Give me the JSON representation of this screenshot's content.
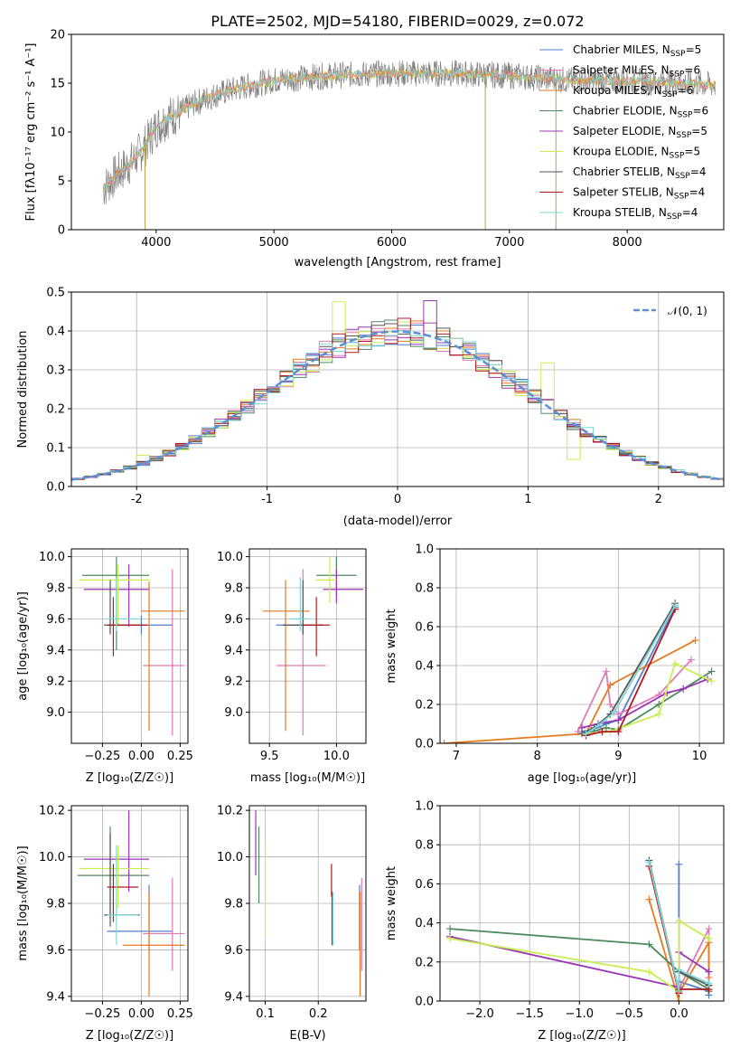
{
  "figure": {
    "title": "PLATE=2502, MJD=54180, FIBERID=0029, z=0.072"
  },
  "colors": {
    "data_grey": "#808080",
    "grid": "#b0b0b0",
    "models": [
      "#4f7fd0",
      "#e07ab8",
      "#e67a1c",
      "#4d8a5e",
      "#9b35b5",
      "#c8ef4e",
      "#555555",
      "#b3191c",
      "#7fd6d6"
    ],
    "normal": "#5b8fd6"
  },
  "models": [
    {
      "label": "Chabrier MILES, N",
      "nssp": "5"
    },
    {
      "label": "Salpeter MILES, N",
      "nssp": "6"
    },
    {
      "label": "Kroupa MILES, N",
      "nssp": "6"
    },
    {
      "label": "Chabrier ELODIE, N",
      "nssp": "6"
    },
    {
      "label": "Salpeter ELODIE, N",
      "nssp": "5"
    },
    {
      "label": "Kroupa ELODIE, N",
      "nssp": "5"
    },
    {
      "label": "Chabrier STELIB, N",
      "nssp": "4"
    },
    {
      "label": "Salpeter STELIB, N",
      "nssp": "4"
    },
    {
      "label": "Kroupa STELIB, N",
      "nssp": "4"
    }
  ],
  "chart_data": [
    {
      "id": "spectrum",
      "type": "line",
      "xlabel": "wavelength [Angstrom, rest frame]",
      "ylabel": "Flux [fλ10⁻¹⁷ erg cm⁻² s⁻¹ A⁻¹]",
      "xlim": [
        3280,
        8820
      ],
      "ylim": [
        0,
        20
      ],
      "xticks": [
        4000,
        5000,
        6000,
        7000,
        8000
      ],
      "yticks": [
        0,
        5,
        10,
        15,
        20
      ],
      "grid": false,
      "legend": "top-right",
      "continuum": {
        "x": [
          3550,
          3650,
          3800,
          3900,
          4000,
          4100,
          4200,
          4300,
          4500,
          4700,
          5000,
          5500,
          6000,
          6500,
          7000,
          7500,
          8000,
          8500,
          8750
        ],
        "y": [
          4.2,
          5.5,
          7.0,
          8.5,
          10.5,
          11.5,
          12.0,
          12.8,
          13.8,
          14.5,
          15.3,
          15.8,
          16.0,
          16.0,
          15.8,
          15.3,
          15.2,
          15.0,
          14.8
        ]
      },
      "noise": 1.4,
      "drops": [
        {
          "x": 3905,
          "y": 0
        },
        {
          "x": 6795,
          "y": 0
        },
        {
          "x": 7395,
          "y": 0
        }
      ]
    },
    {
      "id": "residuals",
      "type": "bar",
      "xlabel": "(data-model)/error",
      "ylabel": "Normed distribution",
      "xlim": [
        -2.5,
        2.5
      ],
      "ylim": [
        0,
        0.5
      ],
      "xticks": [
        -2,
        -1,
        0,
        1,
        2
      ],
      "yticks": [
        0.0,
        0.1,
        0.2,
        0.3,
        0.4,
        0.5
      ],
      "grid": true,
      "legend": "top-right",
      "legend_label": "𝒩(0, 1)",
      "bin_width": 0.1,
      "highlights": [
        {
          "x": -0.45,
          "value": 0.475,
          "series": 5
        },
        {
          "x": 0.25,
          "value": 0.478,
          "series": 4
        },
        {
          "x": 1.15,
          "value": 0.318,
          "series": 5
        },
        {
          "x": -1.95,
          "value": 0.08,
          "series": 5
        },
        {
          "x": 1.35,
          "value": 0.07,
          "series": 5
        }
      ]
    },
    {
      "id": "age-vs-z",
      "type": "scatter",
      "xlabel": "Z [log₁₀(Z/Z☉)]",
      "ylabel": "age  [log₁₀(age/yr)]",
      "xlim": [
        -0.45,
        0.3
      ],
      "ylim": [
        8.8,
        10.05
      ],
      "xticks": [
        -0.25,
        0.0,
        0.25
      ],
      "xticklabels": [
        "−0.25",
        "0.00",
        "0.25"
      ],
      "yticks": [
        9.0,
        9.2,
        9.4,
        9.6,
        9.8,
        10.0
      ],
      "grid": true,
      "points": [
        {
          "x": 0.0,
          "xe": [
            -0.22,
            0.2
          ],
          "y": 9.56,
          "ye": [
            9.5,
            9.62
          ],
          "series": 0
        },
        {
          "x": 0.2,
          "xe": [
            0.01,
            0.28
          ],
          "y": 9.3,
          "ye": [
            8.85,
            9.92
          ],
          "series": 1
        },
        {
          "x": 0.05,
          "xe": [
            0.0,
            0.28
          ],
          "y": 9.65,
          "ye": [
            8.88,
            9.84
          ],
          "series": 2
        },
        {
          "x": -0.16,
          "xe": [
            -0.38,
            0.05
          ],
          "y": 9.88,
          "ye": [
            9.4,
            10.0
          ],
          "series": 3
        },
        {
          "x": -0.08,
          "xe": [
            -0.37,
            0.05
          ],
          "y": 9.79,
          "ye": [
            9.55,
            9.95
          ],
          "series": 4
        },
        {
          "x": -0.15,
          "xe": [
            -0.4,
            0.05
          ],
          "y": 9.85,
          "ye": [
            9.55,
            9.95
          ],
          "series": 5
        },
        {
          "x": -0.2,
          "xe": [
            -0.24,
            -0.01
          ],
          "y": 9.56,
          "ye": [
            9.5,
            9.85
          ],
          "series": 6
        },
        {
          "x": -0.18,
          "xe": [
            -0.22,
            0.04
          ],
          "y": 9.56,
          "ye": [
            9.36,
            9.74
          ],
          "series": 7
        },
        {
          "x": -0.16,
          "xe": [
            -0.22,
            -0.02
          ],
          "y": 9.6,
          "ye": [
            9.52,
            9.87
          ],
          "series": 8
        }
      ]
    },
    {
      "id": "age-vs-mass",
      "type": "scatter",
      "xlabel": "mass [log₁₀(M/M☉)]",
      "ylabel": "",
      "xlim": [
        9.35,
        10.22
      ],
      "ylim": [
        8.8,
        10.05
      ],
      "xticks": [
        9.5,
        10.0
      ],
      "xticklabels": [
        "9.5",
        "10.0"
      ],
      "yticks": [
        9.0,
        9.2,
        9.4,
        9.6,
        9.8,
        10.0
      ],
      "grid": true,
      "points": [
        {
          "x": 9.75,
          "xe": [
            9.55,
            9.9
          ],
          "y": 9.56,
          "ye": [
            9.5,
            9.62
          ],
          "series": 0
        },
        {
          "x": 9.75,
          "xe": [
            9.55,
            9.92
          ],
          "y": 9.3,
          "ye": [
            8.85,
            9.92
          ],
          "series": 1
        },
        {
          "x": 9.62,
          "xe": [
            9.45,
            9.8
          ],
          "y": 9.65,
          "ye": [
            8.88,
            9.85
          ],
          "series": 2
        },
        {
          "x": 10.0,
          "xe": [
            9.85,
            10.15
          ],
          "y": 9.88,
          "ye": [
            9.75,
            10.0
          ],
          "series": 3
        },
        {
          "x": 10.0,
          "xe": [
            9.9,
            10.2
          ],
          "y": 9.79,
          "ye": [
            9.7,
            9.92
          ],
          "series": 4
        },
        {
          "x": 9.95,
          "xe": [
            9.85,
            10.0
          ],
          "y": 9.85,
          "ye": [
            9.7,
            10.0
          ],
          "series": 5
        },
        {
          "x": 9.75,
          "xe": [
            9.6,
            9.9
          ],
          "y": 9.56,
          "ye": [
            9.5,
            9.85
          ],
          "series": 6
        },
        {
          "x": 9.85,
          "xe": [
            9.75,
            9.95
          ],
          "y": 9.56,
          "ye": [
            9.36,
            9.74
          ],
          "series": 7
        },
        {
          "x": 9.73,
          "xe": [
            9.65,
            9.8
          ],
          "y": 9.6,
          "ye": [
            9.52,
            9.87
          ],
          "series": 8
        }
      ]
    },
    {
      "id": "weight-vs-age",
      "type": "line",
      "xlabel": "age  [log₁₀(age/yr)]",
      "ylabel": "mass weight",
      "xlim": [
        6.8,
        10.3
      ],
      "ylim": [
        0,
        1.0
      ],
      "xticks": [
        7,
        8,
        9,
        10
      ],
      "xticklabels": [
        "7",
        "8",
        "9",
        "10"
      ],
      "yticks": [
        0.0,
        0.2,
        0.4,
        0.6,
        0.8,
        1.0
      ],
      "grid": true,
      "series": [
        {
          "name": "Chabrier MILES",
          "x": [
            8.55,
            8.75,
            8.85,
            9.0,
            9.7
          ],
          "y": [
            0.06,
            0.08,
            0.1,
            0.12,
            0.7
          ],
          "series": 0
        },
        {
          "name": "Salpeter MILES",
          "x": [
            8.5,
            8.85,
            8.9,
            9.0,
            9.5,
            9.9
          ],
          "y": [
            0.06,
            0.37,
            0.2,
            0.15,
            0.25,
            0.43
          ],
          "series": 1
        },
        {
          "name": "Kroupa MILES",
          "x": [
            6.85,
            8.6,
            8.9,
            9.95
          ],
          "y": [
            0.0,
            0.05,
            0.3,
            0.53
          ],
          "series": 2
        },
        {
          "name": "Chabrier ELODIE",
          "x": [
            8.6,
            8.85,
            9.0,
            9.5,
            10.15
          ],
          "y": [
            0.05,
            0.08,
            0.07,
            0.2,
            0.37
          ],
          "series": 3
        },
        {
          "name": "Salpeter ELODIE",
          "x": [
            8.55,
            8.75,
            9.0,
            9.6,
            9.8,
            10.1
          ],
          "y": [
            0.08,
            0.1,
            0.12,
            0.26,
            0.28,
            0.33
          ],
          "series": 4
        },
        {
          "name": "Kroupa ELODIE",
          "x": [
            8.6,
            8.9,
            9.5,
            9.7,
            10.15
          ],
          "y": [
            0.05,
            0.06,
            0.15,
            0.41,
            0.32
          ],
          "series": 5
        },
        {
          "name": "Chabrier STELIB",
          "x": [
            8.55,
            8.7,
            8.9,
            9.7
          ],
          "y": [
            0.05,
            0.08,
            0.15,
            0.72
          ],
          "series": 6
        },
        {
          "name": "Salpeter STELIB",
          "x": [
            8.6,
            8.8,
            9.0,
            9.7
          ],
          "y": [
            0.04,
            0.06,
            0.06,
            0.69
          ],
          "series": 7
        },
        {
          "name": "Kroupa STELIB",
          "x": [
            8.6,
            8.75,
            8.95,
            9.7
          ],
          "y": [
            0.05,
            0.09,
            0.16,
            0.71
          ],
          "series": 8
        }
      ]
    },
    {
      "id": "mass-vs-z",
      "type": "scatter",
      "xlabel": "Z [log₁₀(Z/Z☉)]",
      "ylabel": "mass [log₁₀(M/M☉)]",
      "xlim": [
        -0.45,
        0.3
      ],
      "ylim": [
        9.38,
        10.22
      ],
      "xticks": [
        -0.25,
        0.0,
        0.25
      ],
      "xticklabels": [
        "−0.25",
        "0.00",
        "0.25"
      ],
      "yticks": [
        9.4,
        9.6,
        9.8,
        10.0,
        10.2
      ],
      "grid": true,
      "points": [
        {
          "x": 0.05,
          "xe": [
            -0.22,
            0.2
          ],
          "y": 9.68,
          "ye": [
            9.6,
            9.88
          ],
          "series": 0
        },
        {
          "x": 0.2,
          "xe": [
            0.01,
            0.28
          ],
          "y": 9.67,
          "ye": [
            9.51,
            9.91
          ],
          "series": 1
        },
        {
          "x": 0.05,
          "xe": [
            -0.12,
            0.28
          ],
          "y": 9.62,
          "ye": [
            9.4,
            9.85
          ],
          "series": 2
        },
        {
          "x": -0.2,
          "xe": [
            -0.41,
            0.05
          ],
          "y": 9.92,
          "ye": [
            9.75,
            10.13
          ],
          "series": 3
        },
        {
          "x": -0.08,
          "xe": [
            -0.37,
            0.05
          ],
          "y": 9.99,
          "ye": [
            9.85,
            10.2
          ],
          "series": 4
        },
        {
          "x": -0.15,
          "xe": [
            -0.4,
            0.05
          ],
          "y": 9.95,
          "ye": [
            9.78,
            10.05
          ],
          "series": 5
        },
        {
          "x": -0.2,
          "xe": [
            -0.24,
            -0.01
          ],
          "y": 9.75,
          "ye": [
            9.7,
            10.1
          ],
          "series": 6
        },
        {
          "x": -0.18,
          "xe": [
            -0.22,
            -0.02
          ],
          "y": 9.87,
          "ye": [
            9.72,
            9.97
          ],
          "series": 7
        },
        {
          "x": -0.16,
          "xe": [
            -0.22,
            -0.02
          ],
          "y": 9.75,
          "ye": [
            9.62,
            10.05
          ],
          "series": 8
        }
      ]
    },
    {
      "id": "mass-vs-ebv",
      "type": "scatter",
      "xlabel": "E(B-V)",
      "ylabel": "",
      "xlim": [
        0.07,
        0.29
      ],
      "ylim": [
        9.38,
        10.22
      ],
      "xticks": [
        0.1,
        0.2
      ],
      "xticklabels": [
        "0.1",
        "0.2"
      ],
      "yticks": [
        9.4,
        9.6,
        9.8,
        10.0,
        10.2
      ],
      "grid": true,
      "points": [
        {
          "x": 0.278,
          "ye": [
            9.6,
            9.88
          ],
          "series": 0
        },
        {
          "x": 0.282,
          "ye": [
            9.51,
            9.91
          ],
          "series": 1
        },
        {
          "x": 0.279,
          "ye": [
            9.4,
            9.85
          ],
          "series": 2
        },
        {
          "x": 0.088,
          "ye": [
            9.8,
            10.13
          ],
          "series": 3
        },
        {
          "x": 0.082,
          "ye": [
            9.92,
            10.2
          ],
          "series": 4
        },
        {
          "x": 0.1,
          "ye": [
            9.65,
            10.07
          ],
          "series": 5
        },
        {
          "x": 0.226,
          "ye": [
            9.62,
            9.85
          ],
          "series": 6
        },
        {
          "x": 0.225,
          "ye": [
            9.83,
            9.97
          ],
          "series": 7
        },
        {
          "x": 0.228,
          "ye": [
            9.62,
            9.85
          ],
          "series": 8
        }
      ]
    },
    {
      "id": "weight-vs-z",
      "type": "line",
      "xlabel": "Z [log₁₀(Z/Z☉)]",
      "ylabel": "mass weight",
      "xlim": [
        -2.4,
        0.45
      ],
      "ylim": [
        0,
        1.0
      ],
      "xticks": [
        -2.0,
        -1.5,
        -1.0,
        -0.5,
        0.0
      ],
      "xticklabels": [
        "−2.0",
        "−1.5",
        "−1.0",
        "−0.5",
        "0.0"
      ],
      "yticks": [
        0.0,
        0.2,
        0.4,
        0.6,
        0.8,
        1.0
      ],
      "grid": true,
      "series": [
        {
          "name": "Chabrier MILES",
          "x": [
            0.0,
            0.0,
            0.3,
            0.3,
            0.3
          ],
          "y": [
            0.7,
            0.1,
            0.05,
            0.03,
            0.08
          ],
          "series": 0
        },
        {
          "name": "Salpeter MILES",
          "x": [
            0.0,
            0.0,
            0.3,
            0.3
          ],
          "y": [
            0.41,
            0.06,
            0.37,
            0.12
          ],
          "series": 1
        },
        {
          "name": "Kroupa MILES",
          "x": [
            -0.3,
            0.0,
            0.0,
            0.3,
            0.3
          ],
          "y": [
            0.52,
            0.0,
            0.04,
            0.3,
            0.09
          ],
          "series": 2
        },
        {
          "name": "Chabrier ELODIE",
          "x": [
            -2.3,
            -0.3,
            0.0,
            0.3,
            0.3
          ],
          "y": [
            0.37,
            0.29,
            0.15,
            0.06,
            0.05
          ],
          "series": 3
        },
        {
          "name": "Salpeter ELODIE",
          "x": [
            -2.3,
            0.0,
            0.0,
            0.3
          ],
          "y": [
            0.33,
            0.07,
            0.25,
            0.15
          ],
          "series": 4
        },
        {
          "name": "Kroupa ELODIE",
          "x": [
            -2.3,
            -0.3,
            0.0,
            0.0,
            0.3
          ],
          "y": [
            0.32,
            0.15,
            0.05,
            0.41,
            0.32
          ],
          "series": 5
        },
        {
          "name": "Chabrier STELIB",
          "x": [
            -0.3,
            0.0,
            0.0,
            0.3
          ],
          "y": [
            0.72,
            0.05,
            0.15,
            0.08
          ],
          "series": 6
        },
        {
          "name": "Salpeter STELIB",
          "x": [
            -0.3,
            0.0,
            0.0,
            0.3
          ],
          "y": [
            0.69,
            0.04,
            0.06,
            0.06
          ],
          "series": 7
        },
        {
          "name": "Kroupa STELIB",
          "x": [
            -0.3,
            0.0,
            0.0,
            0.3
          ],
          "y": [
            0.71,
            0.05,
            0.16,
            0.09
          ],
          "series": 8
        }
      ]
    }
  ]
}
